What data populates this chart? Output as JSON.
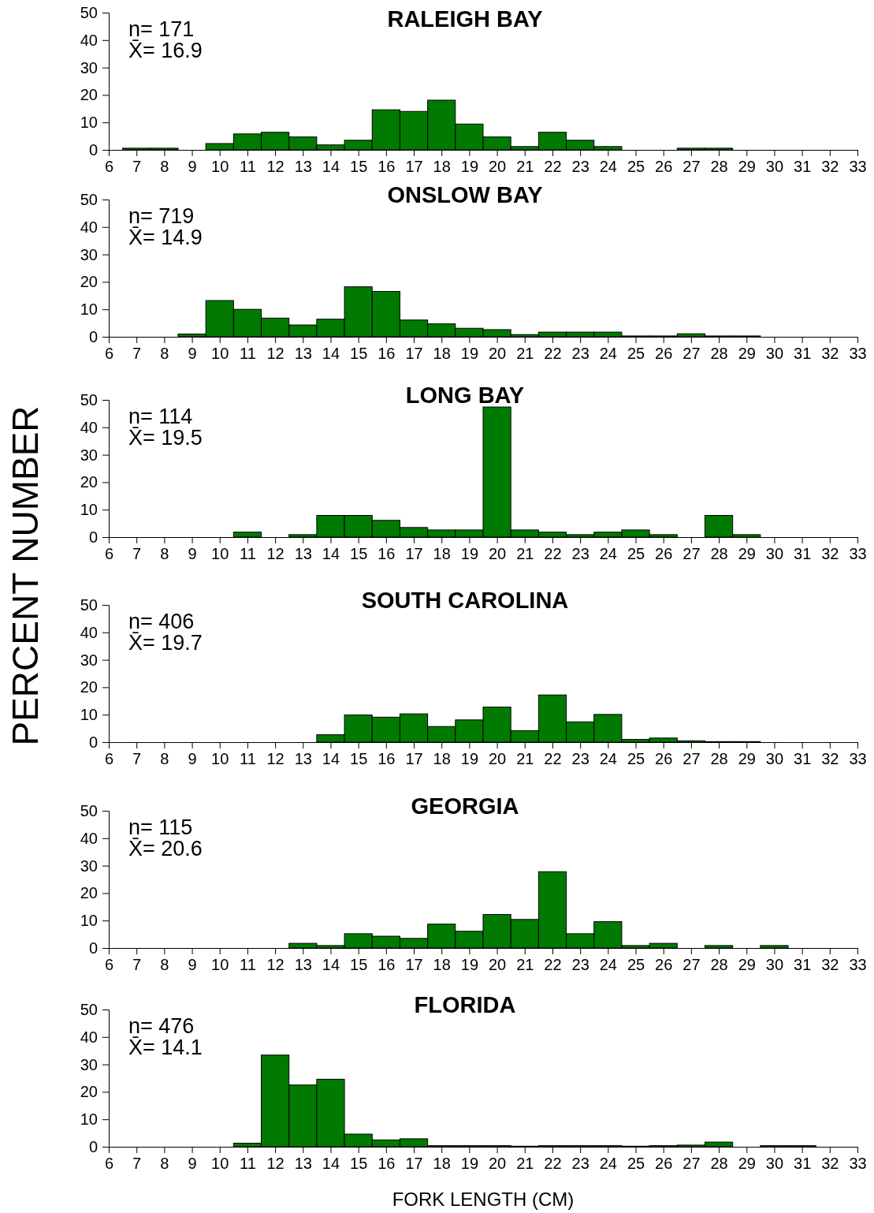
{
  "chart_data": [
    {
      "type": "histogram",
      "title": "RALEIGH BAY",
      "annotations": [
        "n= 171",
        "X̄= 16.9"
      ],
      "color": "#007a00",
      "bins": [
        6.5,
        7.5,
        8.5,
        9.5,
        10.5,
        11.5,
        12.5,
        13.5,
        14.5,
        15.5,
        16.5,
        17.5,
        18.5,
        19.5,
        20.5,
        21.5,
        22.5,
        23.5,
        24.5,
        25.5,
        26.5,
        27.5,
        28.5,
        29.5,
        30.5,
        31.5,
        32.5
      ],
      "values": [
        0.6,
        0.6,
        0,
        2.3,
        5.8,
        6.4,
        4.7,
        1.8,
        3.5,
        14.6,
        14,
        18.1,
        9.4,
        4.7,
        1.2,
        6.4,
        3.5,
        1.2,
        0,
        0,
        0.6,
        0.6,
        0,
        0,
        0,
        0
      ],
      "xlim": [
        6,
        33
      ],
      "xticks": [
        6,
        7,
        8,
        9,
        10,
        11,
        12,
        13,
        14,
        15,
        16,
        17,
        18,
        19,
        20,
        21,
        22,
        23,
        24,
        25,
        26,
        27,
        28,
        29,
        30,
        31,
        32,
        33
      ],
      "ylim": [
        0,
        50
      ],
      "yticks": [
        0,
        10,
        20,
        30,
        40,
        50
      ],
      "grid": false
    },
    {
      "type": "histogram",
      "title": "ONSLOW BAY",
      "annotations": [
        "n= 719",
        "X̄= 14.9"
      ],
      "color": "#007a00",
      "bins": [
        6.5,
        7.5,
        8.5,
        9.5,
        10.5,
        11.5,
        12.5,
        13.5,
        14.5,
        15.5,
        16.5,
        17.5,
        18.5,
        19.5,
        20.5,
        21.5,
        22.5,
        23.5,
        24.5,
        25.5,
        26.5,
        27.5,
        28.5,
        29.5,
        30.5,
        31.5,
        32.5
      ],
      "values": [
        0,
        0,
        1,
        13.2,
        10,
        6.8,
        4.3,
        6.4,
        18.2,
        16.5,
        6.1,
        4.7,
        3.1,
        2.6,
        0.8,
        1.7,
        1.7,
        1.7,
        0.3,
        0.3,
        1.1,
        0.3,
        0.3,
        0,
        0,
        0
      ],
      "xlim": [
        6,
        33
      ],
      "xticks": [
        6,
        7,
        8,
        9,
        10,
        11,
        12,
        13,
        14,
        15,
        16,
        17,
        18,
        19,
        20,
        21,
        22,
        23,
        24,
        25,
        26,
        27,
        28,
        29,
        30,
        31,
        32,
        33
      ],
      "ylim": [
        0,
        50
      ],
      "yticks": [
        0,
        10,
        20,
        30,
        40,
        50
      ],
      "grid": false
    },
    {
      "type": "histogram",
      "title": "LONG BAY",
      "ylabel": "PERCENT NUMBER",
      "annotations": [
        "n= 114",
        "X̄= 19.5"
      ],
      "color": "#007a00",
      "bins": [
        6.5,
        7.5,
        8.5,
        9.5,
        10.5,
        11.5,
        12.5,
        13.5,
        14.5,
        15.5,
        16.5,
        17.5,
        18.5,
        19.5,
        20.5,
        21.5,
        22.5,
        23.5,
        24.5,
        25.5,
        26.5,
        27.5,
        28.5,
        29.5,
        30.5,
        31.5,
        32.5
      ],
      "values": [
        0,
        0,
        0,
        0,
        1.8,
        0,
        0.9,
        7.9,
        7.9,
        6.1,
        3.5,
        2.6,
        2.6,
        47.4,
        2.6,
        1.8,
        0.9,
        1.8,
        2.6,
        0.9,
        0,
        7.9,
        0.9,
        0,
        0,
        0
      ],
      "xlim": [
        6,
        33
      ],
      "xticks": [
        6,
        7,
        8,
        9,
        10,
        11,
        12,
        13,
        14,
        15,
        16,
        17,
        18,
        19,
        20,
        21,
        22,
        23,
        24,
        25,
        26,
        27,
        28,
        29,
        30,
        31,
        32,
        33
      ],
      "ylim": [
        0,
        50
      ],
      "yticks": [
        0,
        10,
        20,
        30,
        40,
        50
      ],
      "grid": false
    },
    {
      "type": "histogram",
      "title": "SOUTH CAROLINA",
      "annotations": [
        "n= 406",
        "X̄= 19.7"
      ],
      "color": "#007a00",
      "bins": [
        6.5,
        7.5,
        8.5,
        9.5,
        10.5,
        11.5,
        12.5,
        13.5,
        14.5,
        15.5,
        16.5,
        17.5,
        18.5,
        19.5,
        20.5,
        21.5,
        22.5,
        23.5,
        24.5,
        25.5,
        26.5,
        27.5,
        28.5,
        29.5,
        30.5,
        31.5,
        32.5
      ],
      "values": [
        0,
        0,
        0,
        0,
        0,
        0,
        0,
        2.7,
        9.9,
        9.1,
        10.3,
        5.7,
        8.1,
        12.8,
        4.2,
        17.2,
        7.4,
        10.1,
        1,
        1.5,
        0.5,
        0.2,
        0.2,
        0,
        0,
        0
      ],
      "xlim": [
        6,
        33
      ],
      "xticks": [
        6,
        7,
        8,
        9,
        10,
        11,
        12,
        13,
        14,
        15,
        16,
        17,
        18,
        19,
        20,
        21,
        22,
        23,
        24,
        25,
        26,
        27,
        28,
        29,
        30,
        31,
        32,
        33
      ],
      "ylim": [
        0,
        50
      ],
      "yticks": [
        0,
        10,
        20,
        30,
        40,
        50
      ],
      "grid": false
    },
    {
      "type": "histogram",
      "title": "GEORGIA",
      "annotations": [
        "n= 115",
        "X̄= 20.6"
      ],
      "color": "#007a00",
      "bins": [
        6.5,
        7.5,
        8.5,
        9.5,
        10.5,
        11.5,
        12.5,
        13.5,
        14.5,
        15.5,
        16.5,
        17.5,
        18.5,
        19.5,
        20.5,
        21.5,
        22.5,
        23.5,
        24.5,
        25.5,
        26.5,
        27.5,
        28.5,
        29.5,
        30.5,
        31.5,
        32.5
      ],
      "values": [
        0,
        0,
        0,
        0,
        0,
        0,
        1.7,
        0.9,
        5.2,
        4.3,
        3.5,
        8.7,
        6.1,
        12.2,
        10.4,
        27.8,
        5.2,
        9.6,
        0.9,
        1.7,
        0,
        0.9,
        0,
        0.9,
        0,
        0
      ],
      "xlim": [
        6,
        33
      ],
      "xticks": [
        6,
        7,
        8,
        9,
        10,
        11,
        12,
        13,
        14,
        15,
        16,
        17,
        18,
        19,
        20,
        21,
        22,
        23,
        24,
        25,
        26,
        27,
        28,
        29,
        30,
        31,
        32,
        33
      ],
      "ylim": [
        0,
        50
      ],
      "yticks": [
        0,
        10,
        20,
        30,
        40,
        50
      ],
      "grid": false
    },
    {
      "type": "histogram",
      "title": "FLORIDA",
      "xlabel": "FORK LENGTH (CM)",
      "annotations": [
        "n= 476",
        "X̄= 14.1"
      ],
      "color": "#007a00",
      "bins": [
        6.5,
        7.5,
        8.5,
        9.5,
        10.5,
        11.5,
        12.5,
        13.5,
        14.5,
        15.5,
        16.5,
        17.5,
        18.5,
        19.5,
        20.5,
        21.5,
        22.5,
        23.5,
        24.5,
        25.5,
        26.5,
        27.5,
        28.5,
        29.5,
        30.5,
        31.5,
        32.5
      ],
      "values": [
        0,
        0,
        0,
        0,
        1.3,
        33.4,
        22.5,
        24.6,
        4.6,
        2.5,
        2.9,
        0.4,
        0.4,
        0.4,
        0.2,
        0.4,
        0.4,
        0.4,
        0.2,
        0.4,
        0.6,
        1.7,
        0,
        0.4,
        0.4,
        0
      ],
      "xlim": [
        6,
        33
      ],
      "xticks": [
        6,
        7,
        8,
        9,
        10,
        11,
        12,
        13,
        14,
        15,
        16,
        17,
        18,
        19,
        20,
        21,
        22,
        23,
        24,
        25,
        26,
        27,
        28,
        29,
        30,
        31,
        32,
        33
      ],
      "ylim": [
        0,
        50
      ],
      "yticks": [
        0,
        10,
        20,
        30,
        40,
        50
      ],
      "grid": false
    }
  ]
}
